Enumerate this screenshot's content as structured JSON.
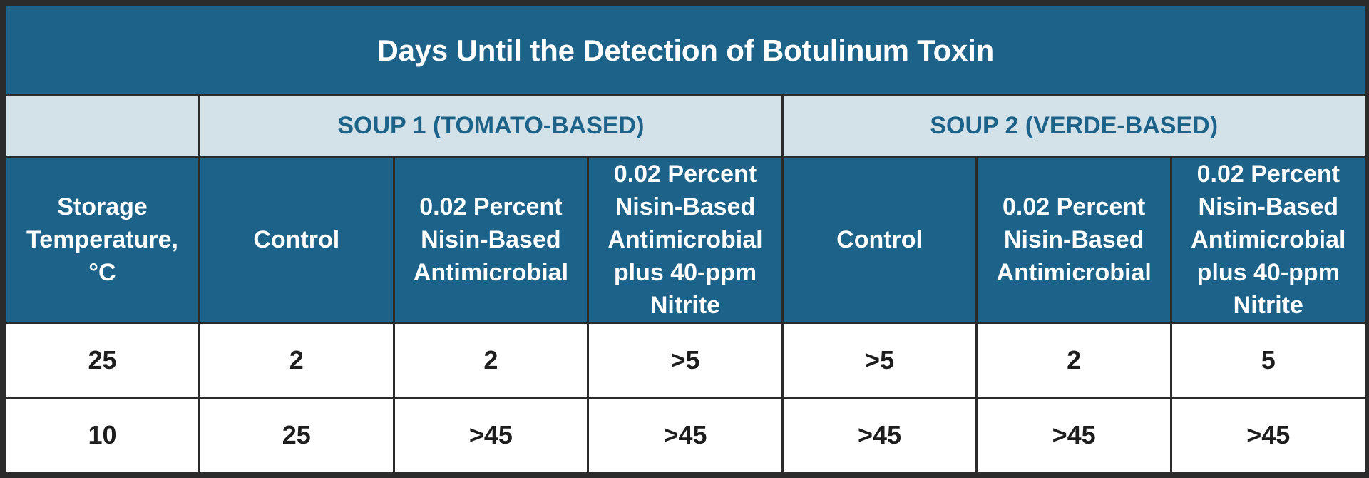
{
  "table": {
    "title": "Days Until the Detection of Botulinum Toxin",
    "groups": [
      {
        "label": "",
        "span": 1
      },
      {
        "label": "SOUP 1 (TOMATO-BASED)",
        "span": 3
      },
      {
        "label": "SOUP 2 (VERDE-BASED)",
        "span": 3
      }
    ],
    "headers": [
      "Storage Temperature, °C",
      "Control",
      "0.02 Percent Nisin-Based Antimicrobial",
      "0.02 Percent Nisin-Based Antimicrobial plus 40-ppm Nitrite",
      "Control",
      "0.02 Percent Nisin-Based Antimicrobial",
      "0.02 Percent Nisin-Based Antimicrobial plus 40-ppm Nitrite"
    ],
    "rows": [
      [
        "25",
        "2",
        "2",
        ">5",
        ">5",
        "2",
        "5"
      ],
      [
        "10",
        "25",
        ">45",
        ">45",
        ">45",
        ">45",
        ">45"
      ]
    ]
  },
  "colors": {
    "header_blue": "#1c6289",
    "group_light": "#d3e1e9",
    "border": "#2b2b2b"
  }
}
